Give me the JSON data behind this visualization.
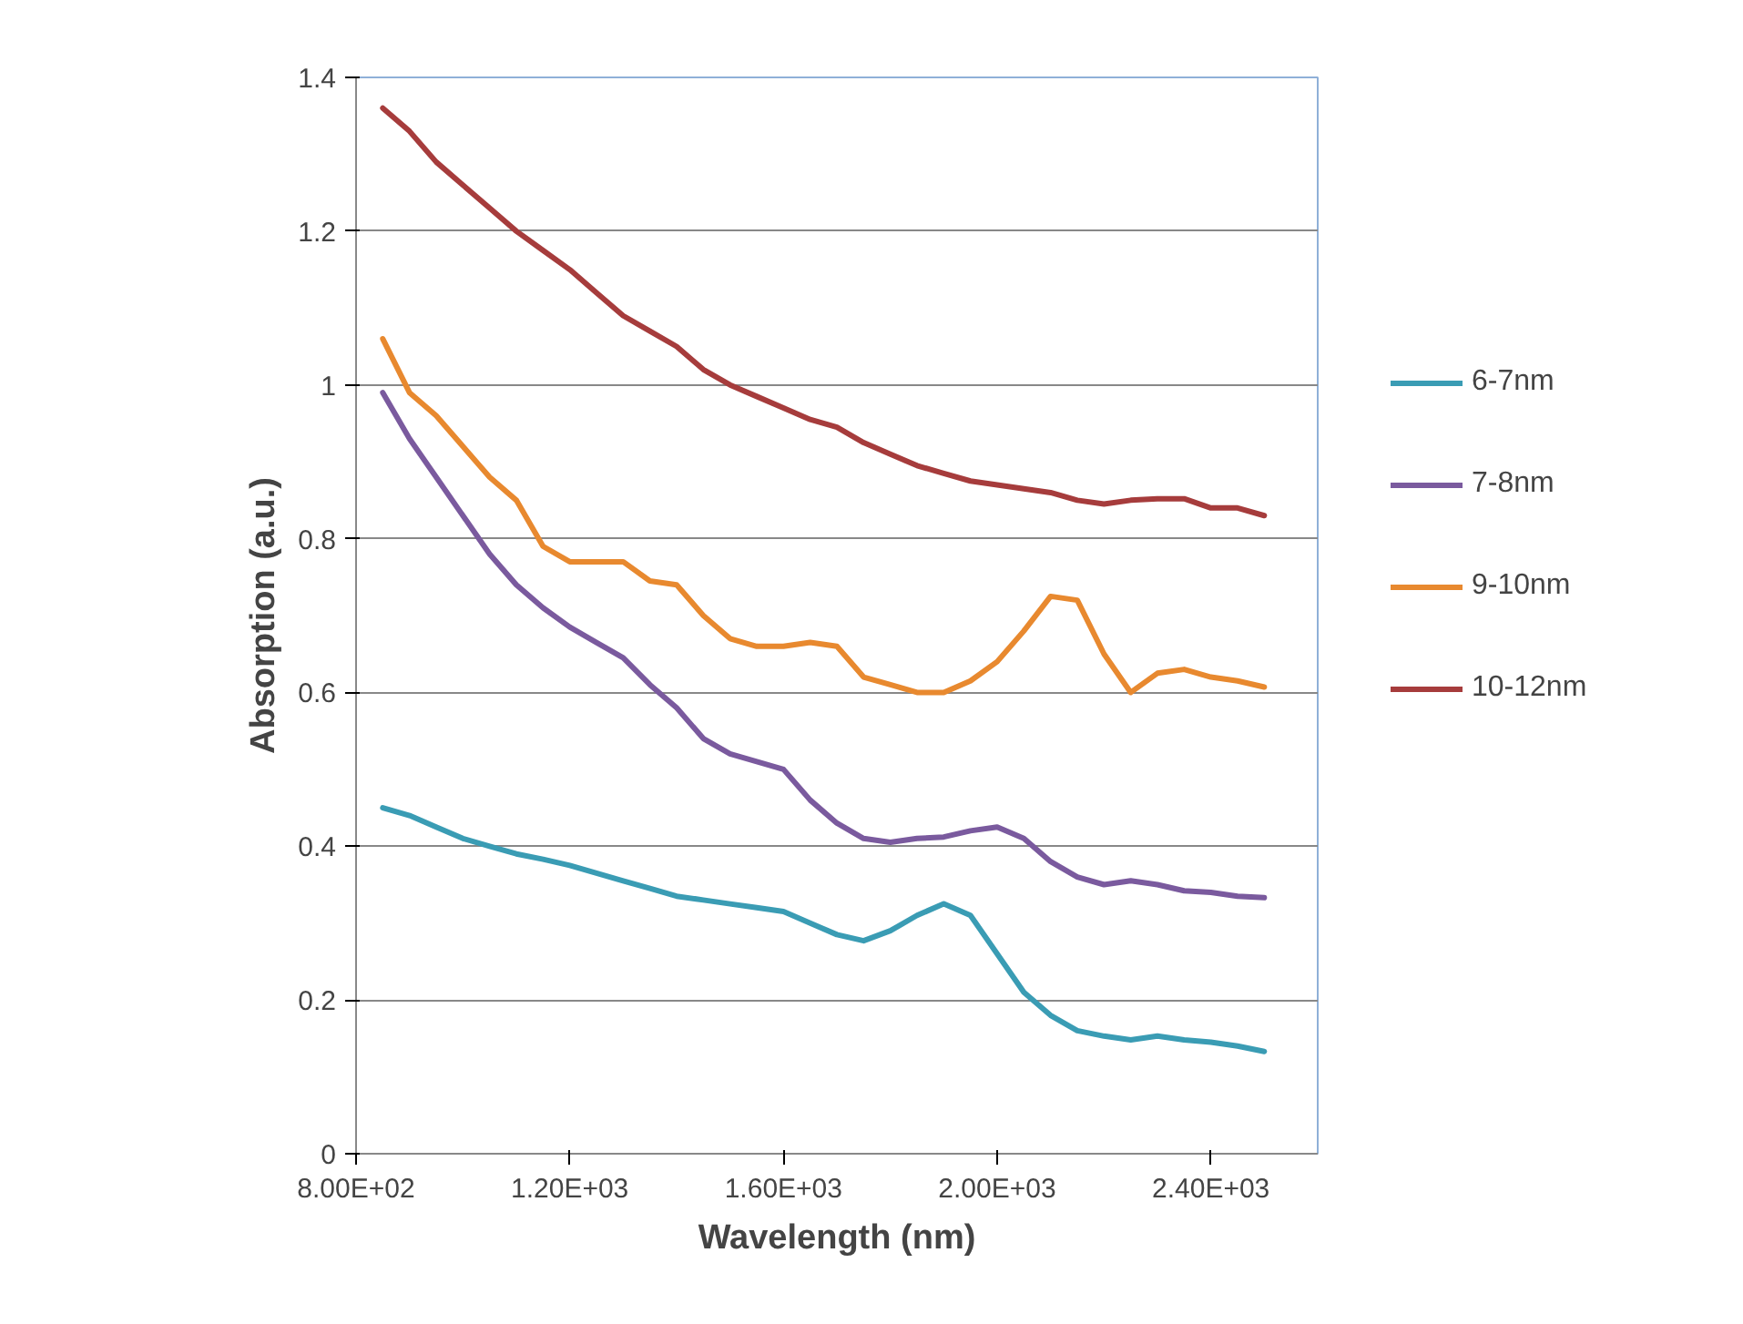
{
  "chart_data": {
    "type": "line",
    "xlabel": "Wavelength (nm)",
    "ylabel": "Absorption (a.u.)",
    "xlim": [
      800,
      2600
    ],
    "ylim": [
      0,
      1.4
    ],
    "xticks": [
      {
        "value": 800,
        "label": "8.00E+02"
      },
      {
        "value": 1200,
        "label": "1.20E+03"
      },
      {
        "value": 1600,
        "label": "1.60E+03"
      },
      {
        "value": 2000,
        "label": "2.00E+03"
      },
      {
        "value": 2400,
        "label": "2.40E+03"
      }
    ],
    "yticks": [
      0,
      0.2,
      0.4,
      0.6,
      0.8,
      1,
      1.2,
      1.4
    ],
    "grid": "y",
    "legend": "right",
    "marker": "none",
    "line_style": "solid",
    "x": [
      850,
      900,
      950,
      1000,
      1050,
      1100,
      1150,
      1200,
      1250,
      1300,
      1350,
      1400,
      1450,
      1500,
      1550,
      1600,
      1650,
      1700,
      1750,
      1800,
      1850,
      1900,
      1950,
      2000,
      2050,
      2100,
      2150,
      2200,
      2250,
      2300,
      2350,
      2400,
      2450,
      2500
    ],
    "series": [
      {
        "name": "6-7nm",
        "color": "#3a9cb4",
        "values": [
          0.45,
          0.44,
          0.425,
          0.41,
          0.4,
          0.39,
          0.383,
          0.375,
          0.365,
          0.355,
          0.345,
          0.335,
          0.33,
          0.325,
          0.32,
          0.315,
          0.3,
          0.285,
          0.277,
          0.29,
          0.31,
          0.325,
          0.31,
          0.26,
          0.21,
          0.18,
          0.16,
          0.153,
          0.148,
          0.153,
          0.148,
          0.145,
          0.14,
          0.133
        ]
      },
      {
        "name": "7-8nm",
        "color": "#7a5a9e",
        "values": [
          0.99,
          0.93,
          0.88,
          0.83,
          0.78,
          0.74,
          0.71,
          0.685,
          0.665,
          0.645,
          0.61,
          0.58,
          0.54,
          0.52,
          0.51,
          0.5,
          0.46,
          0.43,
          0.41,
          0.405,
          0.41,
          0.412,
          0.42,
          0.425,
          0.41,
          0.38,
          0.36,
          0.35,
          0.355,
          0.35,
          0.342,
          0.34,
          0.335,
          0.333
        ]
      },
      {
        "name": "9-10nm",
        "color": "#e8892f",
        "values": [
          1.06,
          0.99,
          0.96,
          0.92,
          0.88,
          0.85,
          0.79,
          0.77,
          0.77,
          0.77,
          0.745,
          0.74,
          0.7,
          0.67,
          0.66,
          0.66,
          0.665,
          0.66,
          0.62,
          0.61,
          0.6,
          0.6,
          0.615,
          0.64,
          0.68,
          0.725,
          0.72,
          0.65,
          0.6,
          0.625,
          0.63,
          0.62,
          0.615,
          0.607
        ]
      },
      {
        "name": "10-12nm",
        "color": "#a63c3c",
        "values": [
          1.36,
          1.33,
          1.29,
          1.26,
          1.23,
          1.2,
          1.175,
          1.15,
          1.12,
          1.09,
          1.07,
          1.05,
          1.02,
          1.0,
          0.985,
          0.97,
          0.955,
          0.945,
          0.925,
          0.91,
          0.895,
          0.885,
          0.875,
          0.87,
          0.865,
          0.86,
          0.85,
          0.845,
          0.85,
          0.852,
          0.852,
          0.84,
          0.84,
          0.83
        ]
      }
    ]
  }
}
